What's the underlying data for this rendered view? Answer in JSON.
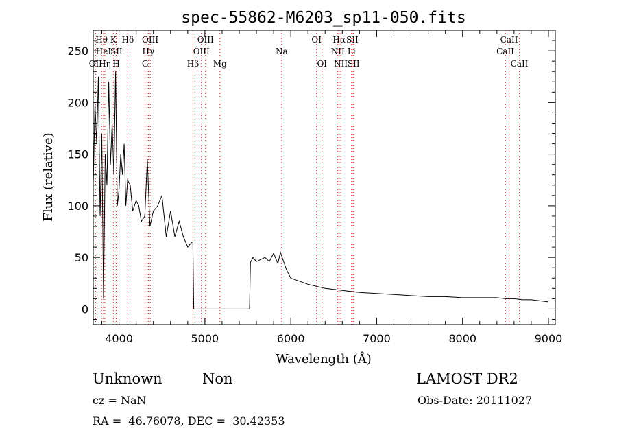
{
  "chart_data": {
    "type": "line",
    "title": "spec-55862-M6203_sp11-050.fits",
    "xlabel": "Wavelength (Å)",
    "ylabel": "Flux (relative)",
    "xlim": [
      3700,
      9080
    ],
    "ylim": [
      -15,
      270
    ],
    "xticks": [
      4000,
      5000,
      6000,
      7000,
      8000,
      9000
    ],
    "yticks": [
      0,
      50,
      100,
      150,
      200,
      250
    ],
    "grid": false,
    "series": [
      {
        "x": [
          3700,
          3720,
          3740,
          3760,
          3780,
          3800,
          3820,
          3840,
          3860,
          3880,
          3900,
          3920,
          3940,
          3960,
          3980,
          4000,
          4020,
          4040,
          4060,
          4080,
          4100,
          4130,
          4160,
          4200,
          4230,
          4260,
          4300,
          4330,
          4360,
          4400,
          4450,
          4500,
          4550,
          4600,
          4650,
          4700,
          4750,
          4800,
          4850,
          4860,
          4870,
          5000,
          5200,
          5400,
          5520,
          5530,
          5560,
          5600,
          5650,
          5700,
          5750,
          5800,
          5850,
          5880,
          5900,
          5950,
          6000,
          6100,
          6200,
          6300,
          6400,
          6500,
          6600,
          6700,
          6800,
          7000,
          7200,
          7400,
          7600,
          7800,
          8000,
          8200,
          8400,
          8500,
          8600,
          8700,
          8800,
          8900,
          9000
        ],
        "values": [
          120,
          200,
          160,
          225,
          90,
          170,
          10,
          150,
          120,
          220,
          140,
          180,
          130,
          230,
          100,
          115,
          150,
          130,
          160,
          100,
          125,
          120,
          95,
          105,
          100,
          85,
          90,
          145,
          80,
          95,
          100,
          110,
          70,
          95,
          70,
          85,
          70,
          60,
          65,
          65,
          0,
          0,
          0,
          0,
          0,
          45,
          50,
          46,
          48,
          50,
          46,
          54,
          44,
          55,
          50,
          38,
          30,
          27,
          24,
          22,
          20,
          19,
          18,
          17,
          16,
          15,
          14,
          13,
          12,
          12,
          11,
          11,
          11,
          10,
          10,
          9,
          9,
          8,
          7
        ]
      }
    ],
    "line_markers": [
      {
        "label": "OII",
        "wl": 3727,
        "row": 3
      },
      {
        "label": "Hθ",
        "wl": 3797,
        "row": 1
      },
      {
        "label": "HeI",
        "wl": 3819,
        "row": 2
      },
      {
        "label": "Hη",
        "wl": 3835,
        "row": 3
      },
      {
        "label": "K",
        "wl": 3934,
        "row": 1
      },
      {
        "label": "SII",
        "wl": 3970,
        "row": 2
      },
      {
        "label": "H",
        "wl": 3968,
        "row": 3
      },
      {
        "label": "Hδ",
        "wl": 4102,
        "row": 1
      },
      {
        "label": "G",
        "wl": 4304,
        "row": 3
      },
      {
        "label": "Hγ",
        "wl": 4341,
        "row": 2
      },
      {
        "label": "OIII",
        "wl": 4363,
        "row": 1
      },
      {
        "label": "Hβ",
        "wl": 4861,
        "row": 3
      },
      {
        "label": "OIII",
        "wl": 4959,
        "row": 2
      },
      {
        "label": "OIII",
        "wl": 5007,
        "row": 1
      },
      {
        "label": "Mg",
        "wl": 5175,
        "row": 3
      },
      {
        "label": "Na",
        "wl": 5894,
        "row": 2
      },
      {
        "label": "OI",
        "wl": 6300,
        "row": 1
      },
      {
        "label": "OI",
        "wl": 6364,
        "row": 3
      },
      {
        "label": "NII",
        "wl": 6548,
        "row": 2
      },
      {
        "label": "Hα",
        "wl": 6563,
        "row": 1
      },
      {
        "label": "NII",
        "wl": 6583,
        "row": 3
      },
      {
        "label": "SII",
        "wl": 6716,
        "row": 1
      },
      {
        "label": "Li",
        "wl": 6708,
        "row": 2
      },
      {
        "label": "SII",
        "wl": 6731,
        "row": 3
      },
      {
        "label": "CaII",
        "wl": 8498,
        "row": 2
      },
      {
        "label": "CaII",
        "wl": 8542,
        "row": 1
      },
      {
        "label": "CaII",
        "wl": 8662,
        "row": 3
      }
    ]
  },
  "info": {
    "classification": "Unknown",
    "subclass": "Non",
    "survey": "LAMOST DR2",
    "cz": "cz = NaN",
    "obs_date": "Obs-Date: 20111027",
    "coords": "RA =  46.76078, DEC =  30.42353"
  }
}
